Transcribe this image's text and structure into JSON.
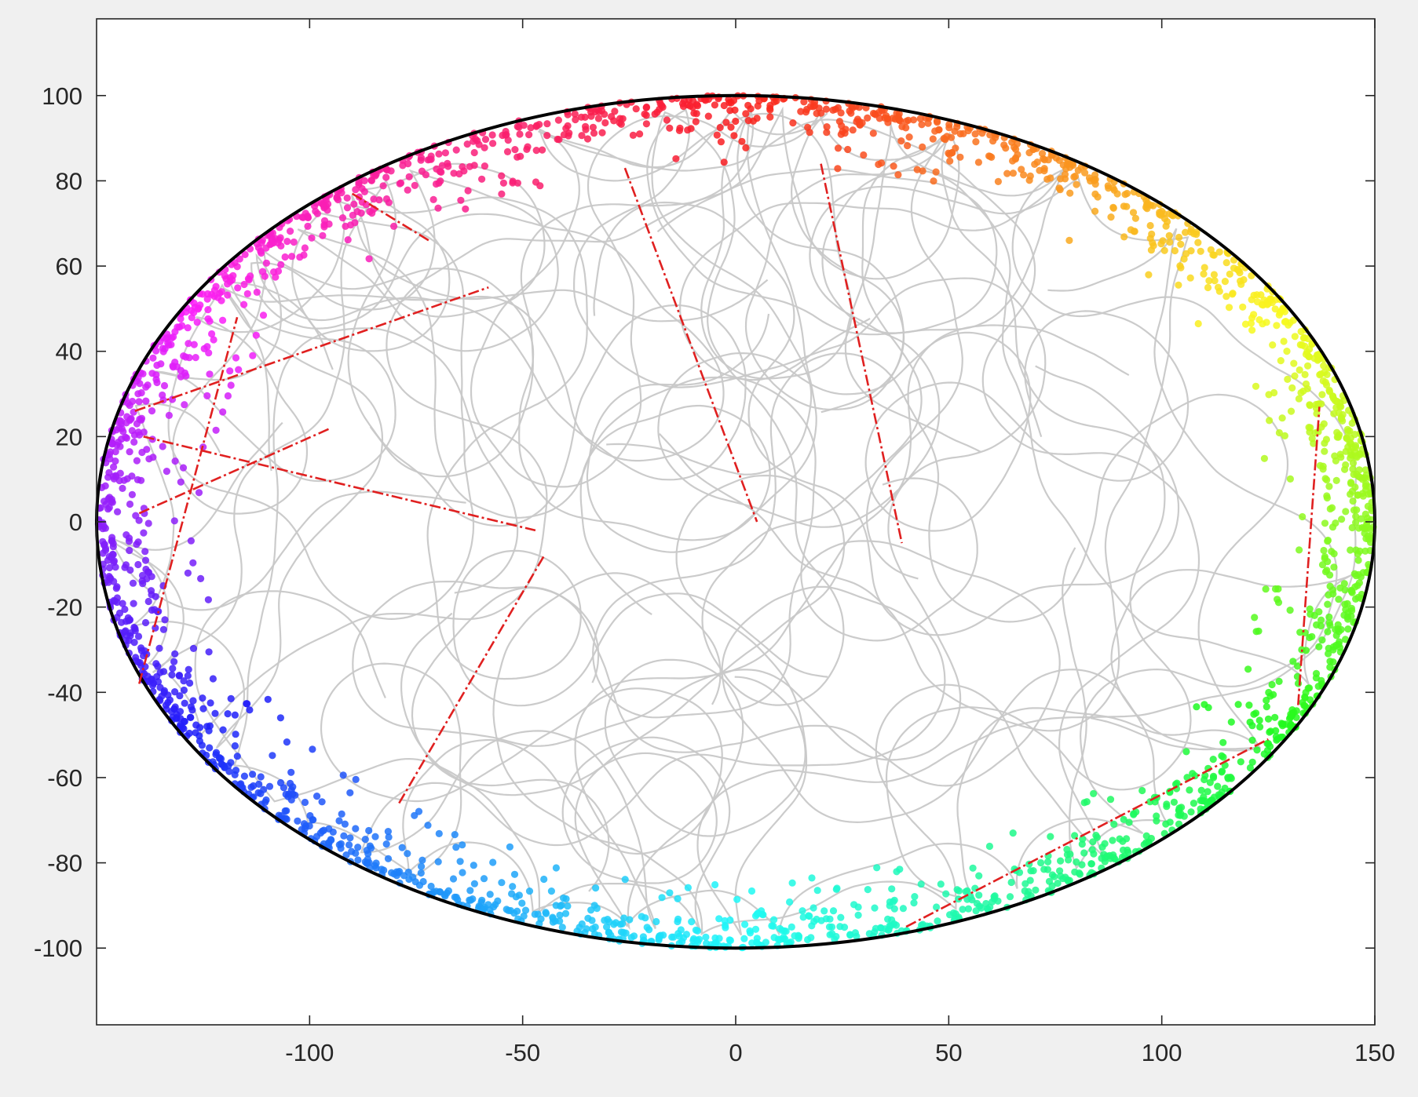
{
  "figure": {
    "background": "#f0f0f0"
  },
  "chart_data": {
    "type": "scatter",
    "title": "",
    "xlabel": "",
    "ylabel": "",
    "xlim": [
      -150,
      150
    ],
    "ylim": [
      -118,
      118
    ],
    "xticks": [
      -100,
      -50,
      0,
      50,
      100,
      150
    ],
    "yticks": [
      100,
      80,
      60,
      40,
      20,
      0,
      -20,
      -40,
      -60,
      -80,
      -100
    ],
    "xtick_labels": [
      "-100",
      "-50",
      "0",
      "50",
      "100",
      "150"
    ],
    "ytick_labels": [
      "100",
      "80",
      "60",
      "40",
      "20",
      "0",
      "-20",
      "-40",
      "-60",
      "-80",
      "-100"
    ],
    "grid": false,
    "legend": "none",
    "boundary": {
      "shape": "ellipse",
      "center": [
        0,
        0
      ],
      "semi_axis_x": 150,
      "semi_axis_y": 100,
      "color": "#000000"
    },
    "series": [
      {
        "role": "trajectory",
        "color": "#c8c8c8",
        "description_visible": false
      },
      {
        "role": "wall-contact points",
        "colormap": "hsv by polar angle",
        "marker": "filled circle"
      },
      {
        "role": "jump segments",
        "color": "#e02020",
        "style": "dash-dot"
      }
    ],
    "jump_segments": [
      {
        "from": [
          -26,
          83
        ],
        "to": [
          5,
          0
        ]
      },
      {
        "from": [
          20,
          84
        ],
        "to": [
          39,
          -5
        ]
      },
      {
        "from": [
          -139,
          20
        ],
        "to": [
          -47,
          -2
        ]
      },
      {
        "from": [
          -140,
          2
        ],
        "to": [
          -95,
          22
        ]
      },
      {
        "from": [
          -141,
          26
        ],
        "to": [
          -58,
          55
        ]
      },
      {
        "from": [
          -140,
          -38
        ],
        "to": [
          -117,
          48
        ]
      },
      {
        "from": [
          -79,
          -66
        ],
        "to": [
          -45,
          -8
        ]
      },
      {
        "from": [
          -90,
          77
        ],
        "to": [
          -72,
          66
        ]
      },
      {
        "from": [
          40,
          -95
        ],
        "to": [
          125,
          -51
        ]
      },
      {
        "from": [
          132,
          -43
        ],
        "to": [
          137,
          27
        ]
      }
    ]
  }
}
